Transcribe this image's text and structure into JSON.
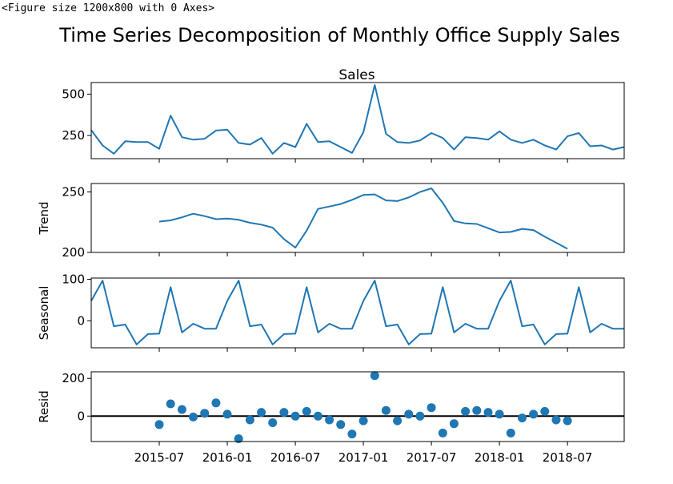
{
  "output_repr": "<Figure size 1200x800 with 0 Axes>",
  "figure_title": "Time Series Decomposition of Monthly Office Supply Sales",
  "colors": {
    "line": "#1f77b4",
    "marker": "#1f77b4",
    "zero_line": "#000000",
    "axes": "#000000"
  },
  "chart_data": [
    {
      "type": "line",
      "title": "Sales",
      "ylabel": "",
      "ylim": [
        110,
        570
      ],
      "yticks": [
        250,
        500
      ],
      "ytick_labels": [
        "250",
        "500"
      ],
      "x": [
        "2015-01",
        "2015-02",
        "2015-03",
        "2015-04",
        "2015-05",
        "2015-06",
        "2015-07",
        "2015-08",
        "2015-09",
        "2015-10",
        "2015-11",
        "2015-12",
        "2016-01",
        "2016-02",
        "2016-03",
        "2016-04",
        "2016-05",
        "2016-06",
        "2016-07",
        "2016-08",
        "2016-09",
        "2016-10",
        "2016-11",
        "2016-12",
        "2017-01",
        "2017-02",
        "2017-03",
        "2017-04",
        "2017-05",
        "2017-06",
        "2017-07",
        "2017-08",
        "2017-09",
        "2017-10",
        "2017-11",
        "2017-12",
        "2018-01",
        "2018-02",
        "2018-03",
        "2018-04",
        "2018-05",
        "2018-06",
        "2018-07",
        "2018-08",
        "2018-09",
        "2018-10",
        "2018-11",
        "2018-12"
      ],
      "values": [
        283,
        190,
        140,
        215,
        210,
        210,
        170,
        370,
        240,
        225,
        230,
        280,
        285,
        205,
        195,
        235,
        140,
        205,
        180,
        320,
        210,
        215,
        180,
        145,
        270,
        555,
        260,
        210,
        205,
        220,
        265,
        235,
        165,
        240,
        235,
        225,
        275,
        225,
        205,
        225,
        190,
        165,
        245,
        265,
        185,
        190,
        165,
        180
      ]
    },
    {
      "type": "line",
      "title": "",
      "ylabel": "Trend",
      "ylim": [
        200,
        257
      ],
      "yticks": [
        200,
        250
      ],
      "ytick_labels": [
        "200",
        "250"
      ],
      "x": [
        "2015-07",
        "2015-08",
        "2015-09",
        "2015-10",
        "2015-11",
        "2015-12",
        "2016-01",
        "2016-02",
        "2016-03",
        "2016-04",
        "2016-05",
        "2016-06",
        "2016-07",
        "2016-08",
        "2016-09",
        "2016-10",
        "2016-11",
        "2016-12",
        "2017-01",
        "2017-02",
        "2017-03",
        "2017-04",
        "2017-05",
        "2017-06",
        "2017-07",
        "2017-08",
        "2017-09",
        "2017-10",
        "2017-11",
        "2017-12",
        "2018-01",
        "2018-02",
        "2018-03",
        "2018-04",
        "2018-05",
        "2018-06",
        "2018-07"
      ],
      "values": [
        225.5,
        226.5,
        229,
        232,
        230,
        227.5,
        228,
        227,
        224.5,
        223,
        220.5,
        211,
        204,
        218,
        236,
        238,
        240,
        243.5,
        247.5,
        248,
        243,
        242.5,
        245.5,
        250,
        253,
        241,
        226,
        224,
        223.5,
        220,
        216.5,
        217,
        219.5,
        218.5,
        213,
        208,
        203
      ]
    },
    {
      "type": "line",
      "title": "",
      "ylabel": "Seasonal",
      "ylim": [
        -65,
        103
      ],
      "yticks": [
        0,
        100
      ],
      "ytick_labels": [
        "0",
        "100"
      ],
      "x": [
        "2015-01",
        "2015-02",
        "2015-03",
        "2015-04",
        "2015-05",
        "2015-06",
        "2015-07",
        "2015-08",
        "2015-09",
        "2015-10",
        "2015-11",
        "2015-12",
        "2016-01",
        "2016-02",
        "2016-03",
        "2016-04",
        "2016-05",
        "2016-06",
        "2016-07",
        "2016-08",
        "2016-09",
        "2016-10",
        "2016-11",
        "2016-12",
        "2017-01",
        "2017-02",
        "2017-03",
        "2017-04",
        "2017-05",
        "2017-06",
        "2017-07",
        "2017-08",
        "2017-09",
        "2017-10",
        "2017-11",
        "2017-12",
        "2018-01",
        "2018-02",
        "2018-03",
        "2018-04",
        "2018-05",
        "2018-06",
        "2018-07",
        "2018-08",
        "2018-09",
        "2018-10",
        "2018-11",
        "2018-12"
      ],
      "values": [
        48,
        97,
        -13,
        -9,
        -57,
        -32,
        -31,
        81,
        -28,
        -7,
        -19,
        -19,
        48,
        97,
        -13,
        -9,
        -57,
        -32,
        -31,
        81,
        -28,
        -7,
        -19,
        -19,
        48,
        97,
        -13,
        -9,
        -57,
        -32,
        -31,
        81,
        -28,
        -7,
        -19,
        -19,
        48,
        97,
        -13,
        -9,
        -57,
        -32,
        -31,
        81,
        -28,
        -7,
        -19,
        -19
      ]
    },
    {
      "type": "scatter",
      "title": "",
      "ylabel": "Resid",
      "ylim": [
        -135,
        235
      ],
      "yticks": [
        0,
        200
      ],
      "ytick_labels": [
        "0",
        "200"
      ],
      "baseline": 0,
      "x": [
        "2015-07",
        "2015-08",
        "2015-09",
        "2015-10",
        "2015-11",
        "2015-12",
        "2016-01",
        "2016-02",
        "2016-03",
        "2016-04",
        "2016-05",
        "2016-06",
        "2016-07",
        "2016-08",
        "2016-09",
        "2016-10",
        "2016-11",
        "2016-12",
        "2017-01",
        "2017-02",
        "2017-03",
        "2017-04",
        "2017-05",
        "2017-06",
        "2017-07",
        "2017-08",
        "2017-09",
        "2017-10",
        "2017-11",
        "2017-12",
        "2018-01",
        "2018-02",
        "2018-03",
        "2018-04",
        "2018-05",
        "2018-06",
        "2018-07"
      ],
      "values": [
        -45,
        65,
        35,
        -5,
        15,
        70,
        10,
        -120,
        -20,
        20,
        -35,
        20,
        0,
        25,
        0,
        -20,
        -45,
        -95,
        -25,
        215,
        30,
        -25,
        10,
        0,
        45,
        -90,
        -40,
        25,
        30,
        20,
        10,
        -90,
        -10,
        10,
        25,
        -20,
        -25
      ]
    }
  ],
  "x_axis": {
    "ticks": [
      "2015-07",
      "2016-01",
      "2016-07",
      "2017-01",
      "2017-07",
      "2018-01",
      "2018-07"
    ],
    "tick_labels": [
      "2015-07",
      "2016-01",
      "2016-07",
      "2017-01",
      "2017-07",
      "2018-01",
      "2018-07"
    ],
    "range": [
      "2015-01",
      "2018-12"
    ]
  }
}
